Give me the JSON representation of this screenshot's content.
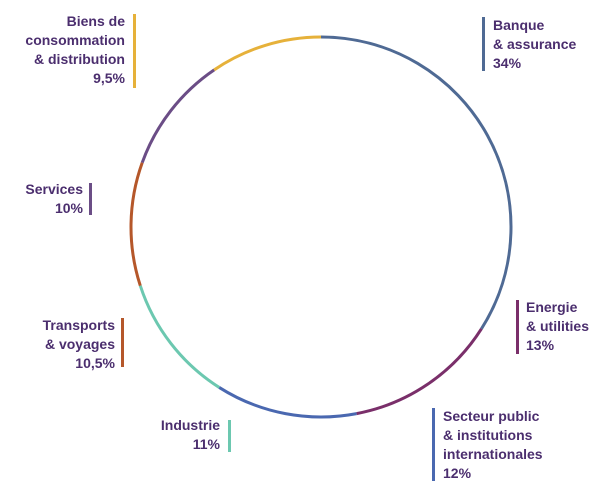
{
  "chart_data": {
    "type": "pie",
    "style": "ring-outline",
    "slices": [
      {
        "label": "Banque\n& assurance",
        "value": 34,
        "value_label": "34%",
        "color": "#4f6a94"
      },
      {
        "label": "Energie\n& utilities",
        "value": 13,
        "value_label": "13%",
        "color": "#7a2f6a"
      },
      {
        "label": "Secteur public\n& institutions\ninternationales",
        "value": 12,
        "value_label": "12%",
        "color": "#4a68b0"
      },
      {
        "label": "Industrie",
        "value": 11,
        "value_label": "11%",
        "color": "#6cc8b0"
      },
      {
        "label": "Transports\n& voyages",
        "value": 10.5,
        "value_label": "10,5%",
        "color": "#b5572a"
      },
      {
        "label": "Services",
        "value": 10,
        "value_label": "10%",
        "color": "#6b4d86"
      },
      {
        "label": "Biens de\nconsommation\n& distribution",
        "value": 9.5,
        "value_label": "9,5%",
        "color": "#e6b13a"
      }
    ]
  }
}
